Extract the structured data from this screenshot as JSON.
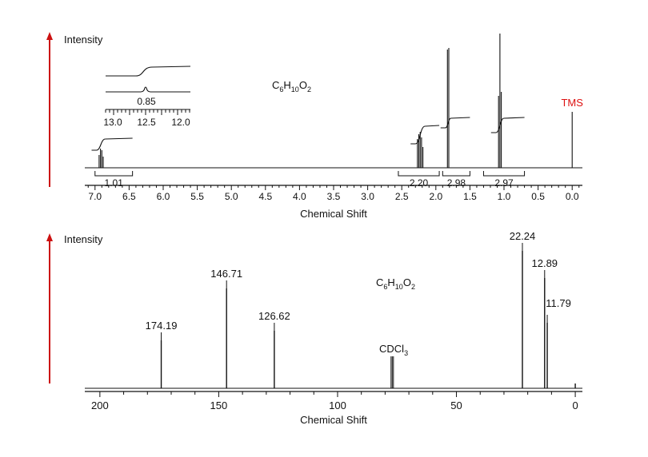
{
  "colors": {
    "arrow": "#cc1111",
    "tms": "#dd1111",
    "trace": "#111111"
  },
  "chart_data": [
    {
      "id": "h1",
      "type": "line",
      "title": "",
      "ylabel": "Intensity",
      "xlabel": "Chemical Shift",
      "xlim": [
        7.15,
        -0.15
      ],
      "x_ticks": [
        "7.0",
        "6.5",
        "6.0",
        "5.5",
        "5.0",
        "4.5",
        "4.0",
        "3.5",
        "3.0",
        "2.5",
        "2.0",
        "1.5",
        "1.0",
        "0.5",
        "0.0"
      ],
      "formula": {
        "c": "C",
        "c_sub": "6",
        "h": "H",
        "h_sub": "10",
        "o": "O",
        "o_sub": "2"
      },
      "peak_label": "TMS",
      "peaks": [
        {
          "ppm": 6.94,
          "h": 16
        },
        {
          "ppm": 6.92,
          "h": 24
        },
        {
          "ppm": 6.9,
          "h": 22
        },
        {
          "ppm": 6.88,
          "h": 14
        },
        {
          "ppm": 2.27,
          "h": 36
        },
        {
          "ppm": 2.25,
          "h": 42
        },
        {
          "ppm": 2.23,
          "h": 45
        },
        {
          "ppm": 2.21,
          "h": 38
        },
        {
          "ppm": 2.19,
          "h": 26
        },
        {
          "ppm": 1.83,
          "h": 148
        },
        {
          "ppm": 1.81,
          "h": 150
        },
        {
          "ppm": 1.08,
          "h": 90
        },
        {
          "ppm": 1.06,
          "h": 168
        },
        {
          "ppm": 1.04,
          "h": 95
        },
        {
          "ppm": 0.0,
          "h": 70
        }
      ],
      "integrals": [
        {
          "label": "1.01",
          "from": 7.0,
          "to": 6.45
        },
        {
          "label": "2.20",
          "from": 2.55,
          "to": 1.95
        },
        {
          "label": "2.98",
          "from": 1.9,
          "to": 1.5
        },
        {
          "label": "2.97",
          "from": 1.3,
          "to": 0.7
        }
      ],
      "inset": {
        "x_ticks": [
          "13.0",
          "12.5",
          "12.0"
        ],
        "integral_label": "0.85",
        "peak_ppm": 12.5
      }
    },
    {
      "id": "c13",
      "type": "line",
      "title": "",
      "ylabel": "Intensity",
      "xlabel": "Chemical Shift",
      "xlim": [
        205,
        -3
      ],
      "x_ticks": [
        "200",
        "150",
        "100",
        "50",
        "0"
      ],
      "formula": {
        "c": "C",
        "c_sub": "6",
        "h": "H",
        "h_sub": "10",
        "o": "O",
        "o_sub": "2"
      },
      "solvent_label": {
        "main": "CDCl",
        "sub": "3"
      },
      "peaks": [
        {
          "ppm": 174.19,
          "label": "174.19",
          "h": 60
        },
        {
          "ppm": 146.71,
          "label": "146.71",
          "h": 125
        },
        {
          "ppm": 126.62,
          "label": "126.62",
          "h": 72
        },
        {
          "ppm": 77.0,
          "label": "",
          "h": 40
        },
        {
          "ppm": 22.24,
          "label": "22.24",
          "h": 172
        },
        {
          "ppm": 12.89,
          "label": "12.89",
          "h": 138
        },
        {
          "ppm": 11.79,
          "label": "11.79",
          "h": 82
        },
        {
          "ppm": 0.0,
          "label": "",
          "h": 6
        }
      ]
    }
  ]
}
